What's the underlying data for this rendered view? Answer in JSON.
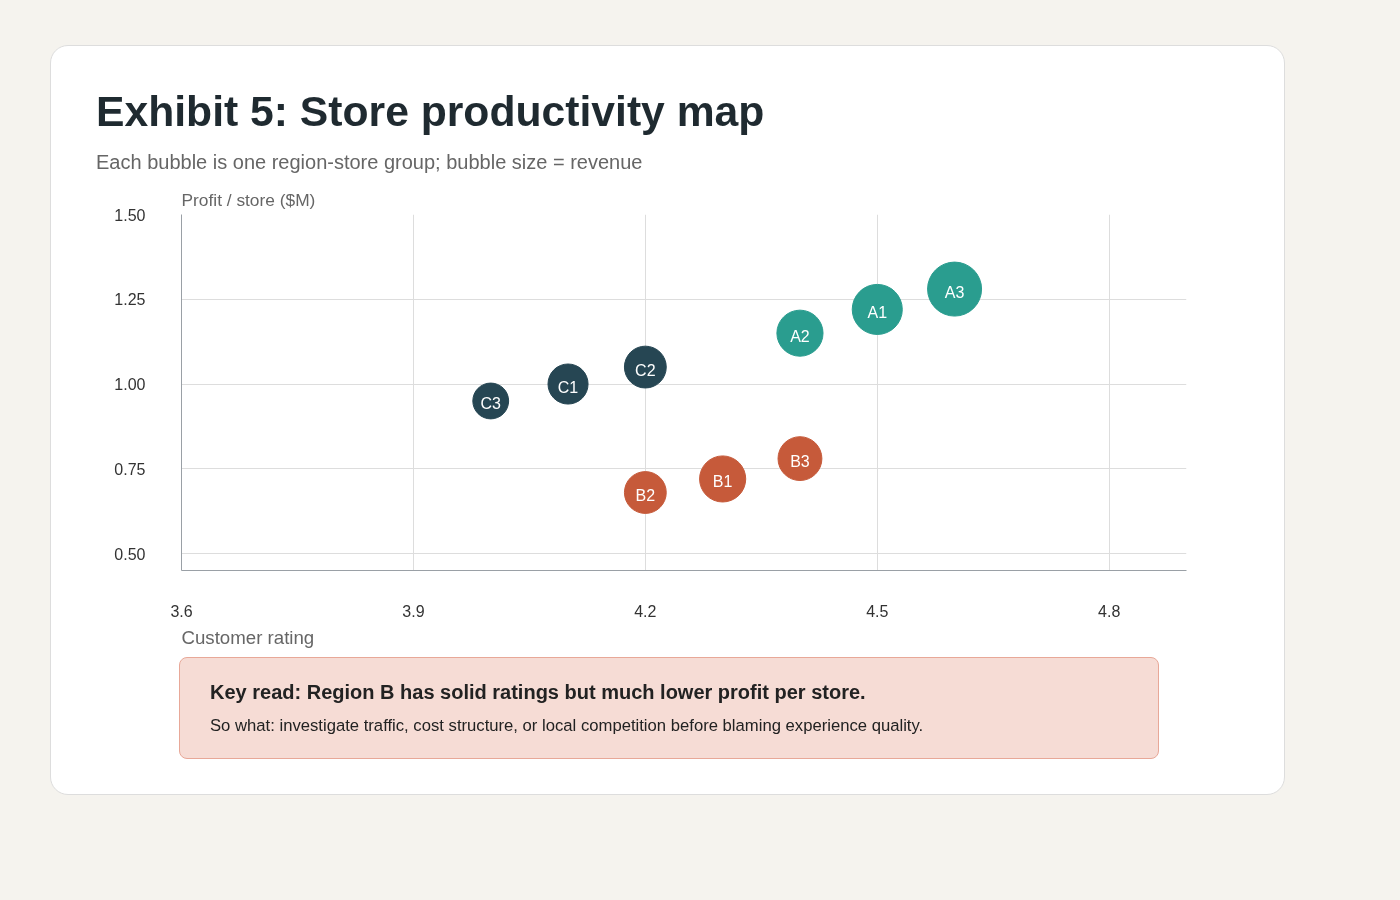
{
  "chart_data": {
    "type": "bubble",
    "title": "Exhibit 5: Store productivity map",
    "subtitle": "Each bubble is one region-store group; bubble size = revenue",
    "xlabel": "Customer rating",
    "ylabel": "Profit / store ($M)",
    "xlim": [
      3.6,
      4.9
    ],
    "xticks": [
      3.6,
      3.9,
      4.2,
      4.5,
      4.8
    ],
    "ylim": [
      0.45,
      1.5
    ],
    "yticks": [
      {
        "value": 0.5,
        "label": "0.50"
      },
      {
        "value": 0.75,
        "label": "0.75"
      },
      {
        "value": 1.0,
        "label": "1.00"
      },
      {
        "value": 1.25,
        "label": "1.25"
      },
      {
        "value": 1.5,
        "label": "1.50"
      }
    ],
    "grid": true,
    "series": [
      {
        "color": "#2a9d8f",
        "x": [
          4.5,
          4.4,
          4.6
        ],
        "values": [
          1.22,
          1.15,
          1.28
        ],
        "sizes": [
          0.86,
          0.73,
          1
        ]
      },
      {
        "color": "#c65a3a",
        "x": [
          4.3,
          4.2,
          4.4
        ],
        "values": [
          0.72,
          0.68,
          0.78
        ],
        "sizes": [
          0.73,
          0.6,
          0.66
        ]
      },
      {
        "color": "#264653",
        "x": [
          4.1,
          4.2,
          4.0
        ],
        "values": [
          1.0,
          1.05,
          0.95
        ],
        "sizes": [
          0.55,
          0.6,
          0.44
        ]
      }
    ],
    "annotations": [
      {
        "text": "A1",
        "x": 4.5,
        "y": 1.22
      },
      {
        "text": "A2",
        "x": 4.4,
        "y": 1.15
      },
      {
        "text": "A3",
        "x": 4.6,
        "y": 1.28
      },
      {
        "text": "B1",
        "x": 4.3,
        "y": 0.72
      },
      {
        "text": "B2",
        "x": 4.2,
        "y": 0.68
      },
      {
        "text": "B3",
        "x": 4.4,
        "y": 0.78
      },
      {
        "text": "C1",
        "x": 4.1,
        "y": 1.0
      },
      {
        "text": "C2",
        "x": 4.2,
        "y": 1.05
      },
      {
        "text": "C3",
        "x": 4.0,
        "y": 0.95
      },
      "Key read: Region B has solid ratings but much lower profit per store.",
      "So what: investigate traffic, cost structure, or local competition before blaming experience quality."
    ]
  }
}
